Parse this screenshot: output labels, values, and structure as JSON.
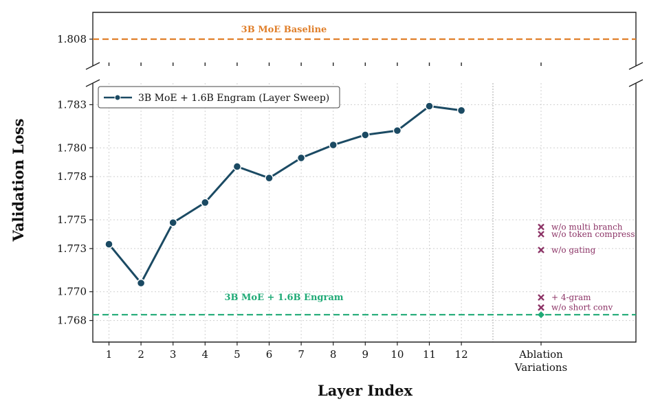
{
  "chart_data": {
    "type": "line",
    "ylabel": "Validation Loss",
    "xlabel": "Layer Index",
    "x": [
      1,
      2,
      3,
      4,
      5,
      6,
      7,
      8,
      9,
      10,
      11,
      12
    ],
    "x_tick_labels": [
      "1",
      "2",
      "3",
      "4",
      "5",
      "6",
      "7",
      "8",
      "9",
      "10",
      "11",
      "12"
    ],
    "extra_x_tick_label": [
      "Ablation",
      "Variations"
    ],
    "ylim_lower": [
      1.7665,
      1.7845
    ],
    "ylim_upper": [
      1.8045,
      1.8115
    ],
    "y_ticks_lower": [
      1.768,
      1.77,
      1.773,
      1.775,
      1.778,
      1.78,
      1.783
    ],
    "y_tick_labels_lower": [
      "1.768",
      "1.770",
      "1.773",
      "1.775",
      "1.778",
      "1.780",
      "1.783"
    ],
    "y_ticks_upper": [
      1.808
    ],
    "y_tick_labels_upper": [
      "1.808"
    ],
    "broken_axis": true,
    "grid": true,
    "legend_position": "top-left",
    "series": [
      {
        "name": "3B MoE + 1.6B Engram (Layer Sweep)",
        "color": "#1b4a63",
        "values": [
          1.7733,
          1.7706,
          1.7748,
          1.7762,
          1.7787,
          1.7779,
          1.7793,
          1.7802,
          1.7809,
          1.7812,
          1.7829,
          1.7826
        ]
      }
    ],
    "reference_lines": [
      {
        "label": "3B MoE Baseline",
        "value": 1.808,
        "color": "#e07f2a"
      },
      {
        "label": "3B MoE + 1.6B Engram",
        "value": 1.7684,
        "color": "#1faa76"
      }
    ],
    "ablations": [
      {
        "label": "w/o multi branch",
        "value": 1.7745,
        "marker": "x",
        "color": "#8c3366"
      },
      {
        "label": "w/o token compress",
        "value": 1.774,
        "marker": "x",
        "color": "#8c3366"
      },
      {
        "label": "w/o gating",
        "value": 1.7729,
        "marker": "x",
        "color": "#8c3366"
      },
      {
        "label": "+ 4-gram",
        "value": 1.7696,
        "marker": "x",
        "color": "#8c3366"
      },
      {
        "label": "w/o short conv",
        "value": 1.7689,
        "marker": "x",
        "color": "#8c3366"
      },
      {
        "label": "",
        "value": 1.7684,
        "marker": "diamond",
        "color": "#1faa76"
      }
    ]
  }
}
